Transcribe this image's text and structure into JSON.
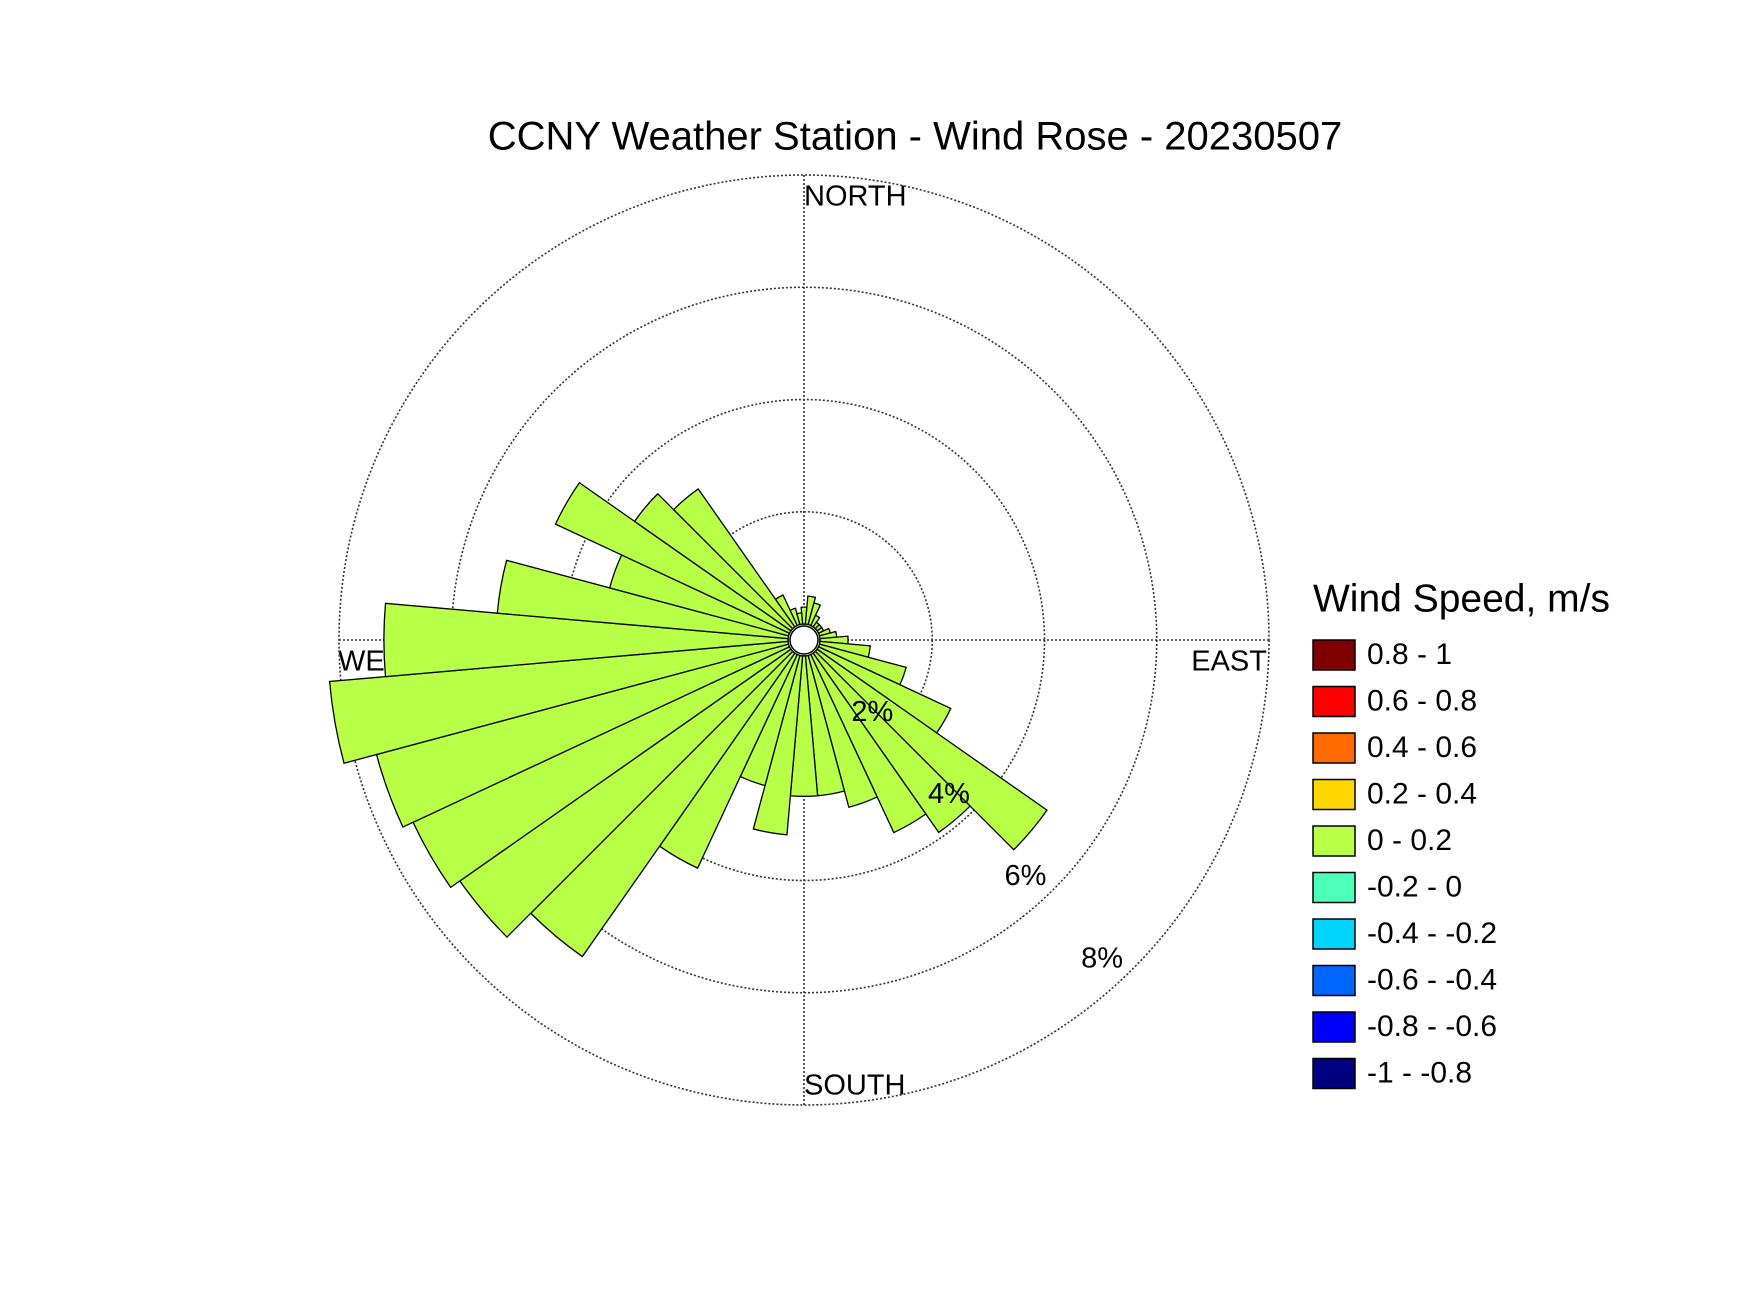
{
  "chart_data": {
    "type": "windrose",
    "title": "CCNY Weather Station - Wind Rose - 20230507",
    "compass_labels": {
      "north": "NORTH",
      "east": "EAST",
      "south": "SOUTH",
      "west": "WEST"
    },
    "legend_title": "Wind Speed, m/s",
    "x": [
      0,
      10,
      20,
      30,
      40,
      50,
      60,
      70,
      80,
      90,
      100,
      110,
      120,
      130,
      140,
      150,
      160,
      170,
      180,
      190,
      200,
      210,
      220,
      230,
      240,
      250,
      260,
      270,
      280,
      290,
      300,
      310,
      320,
      330,
      340,
      350
    ],
    "rlim": [
      0,
      8
    ],
    "rticks": [
      {
        "value": 2,
        "label": "2%"
      },
      {
        "value": 4,
        "label": "4%"
      },
      {
        "value": 6,
        "label": "6%"
      },
      {
        "value": 8,
        "label": "8%"
      }
    ],
    "series": [
      {
        "name": "0.8 - 1",
        "color": "#800000"
      },
      {
        "name": "0.6 - 0.8",
        "color": "#ff0000"
      },
      {
        "name": "0.4 - 0.6",
        "color": "#ff6a00"
      },
      {
        "name": "0.2 - 0.4",
        "color": "#ffd700"
      },
      {
        "name": "0 - 0.2",
        "color": "#b8ff47",
        "values": [
          0.3,
          0.5,
          0.4,
          0.2,
          0.1,
          0.1,
          0.1,
          0.2,
          0.3,
          0.5,
          0.9,
          1.6,
          2.6,
          5.0,
          3.9,
          3.5,
          2.8,
          2.5,
          2.5,
          3.2,
          2.4,
          4.2,
          6.6,
          7.2,
          7.4,
          7.6,
          8.2,
          7.2,
          5.2,
          3.3,
          4.6,
          3.4,
          3.0,
          0.6,
          0.3,
          0.2
        ]
      },
      {
        "name": "-0.2 - 0",
        "color": "#4dffb8"
      },
      {
        "name": "-0.4 - -0.2",
        "color": "#00d4ff"
      },
      {
        "name": "-0.6 - -0.4",
        "color": "#0066ff"
      },
      {
        "name": "-0.8 - -0.6",
        "color": "#0000ff"
      },
      {
        "name": "-1 - -0.8",
        "color": "#000080"
      }
    ]
  }
}
